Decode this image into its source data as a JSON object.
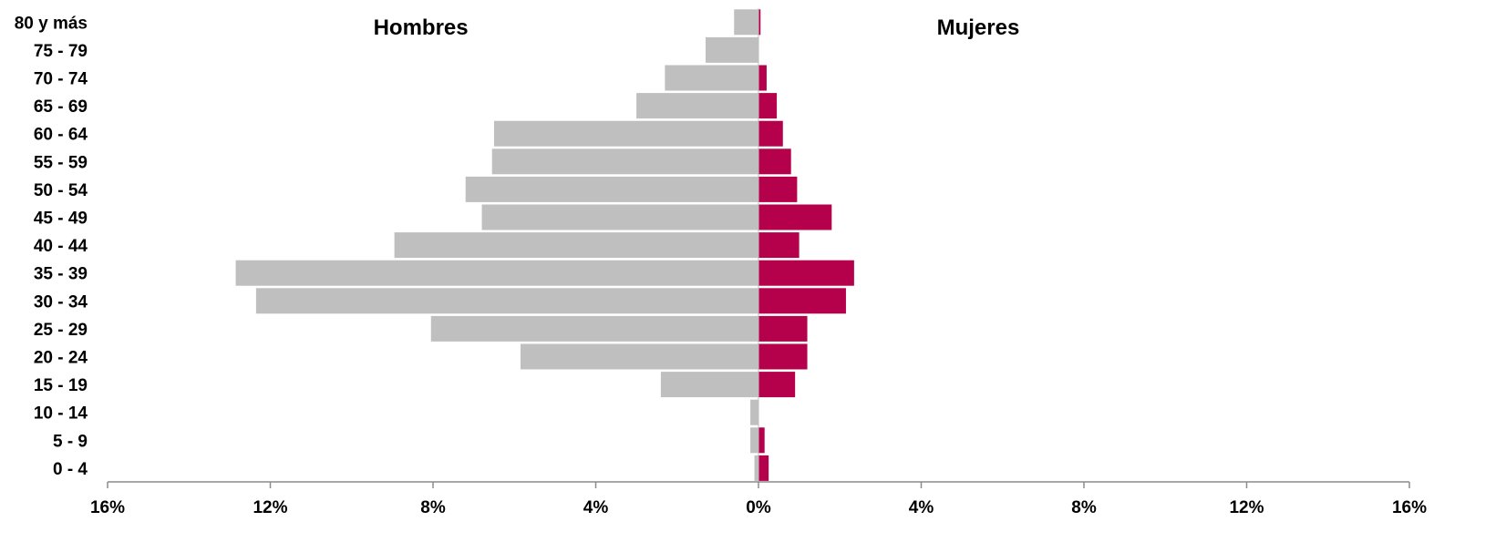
{
  "chart_data": {
    "type": "bar",
    "orientation": "horizontal",
    "categories": [
      "80 y más",
      "75 - 79",
      "70 - 74",
      "65 - 69",
      "60 - 64",
      "55 - 59",
      "50 - 54",
      "45 - 49",
      "40 - 44",
      "35 - 39",
      "30 - 34",
      "25 - 29",
      "20 - 24",
      "15 - 19",
      "10 - 14",
      "5 - 9",
      "0 - 4"
    ],
    "series": [
      {
        "name": "Hombres",
        "color": "#bfbfbf",
        "values": [
          0.6,
          1.3,
          2.3,
          3.0,
          6.5,
          6.55,
          7.2,
          6.8,
          8.95,
          12.85,
          12.35,
          8.05,
          5.85,
          2.4,
          0.2,
          0.2,
          0.1
        ]
      },
      {
        "name": "Mujeres",
        "color": "#b5004b",
        "values": [
          0.05,
          0,
          0.2,
          0.45,
          0.6,
          0.8,
          0.95,
          1.8,
          1.0,
          2.35,
          2.15,
          1.2,
          1.2,
          0.9,
          0,
          0.15,
          0.25
        ]
      }
    ],
    "xlim": [
      -16,
      16
    ],
    "xticks": [
      -16,
      -12,
      -8,
      -4,
      0,
      4,
      8,
      12,
      16
    ],
    "xtick_labels": [
      "16%",
      "12%",
      "8%",
      "4%",
      "0%",
      "4%",
      "8%",
      "12%",
      "16%"
    ],
    "group_labels": {
      "left": "Hombres",
      "right": "Mujeres"
    },
    "title": "",
    "xlabel": "",
    "ylabel": "",
    "grid": false,
    "legend": "none"
  }
}
